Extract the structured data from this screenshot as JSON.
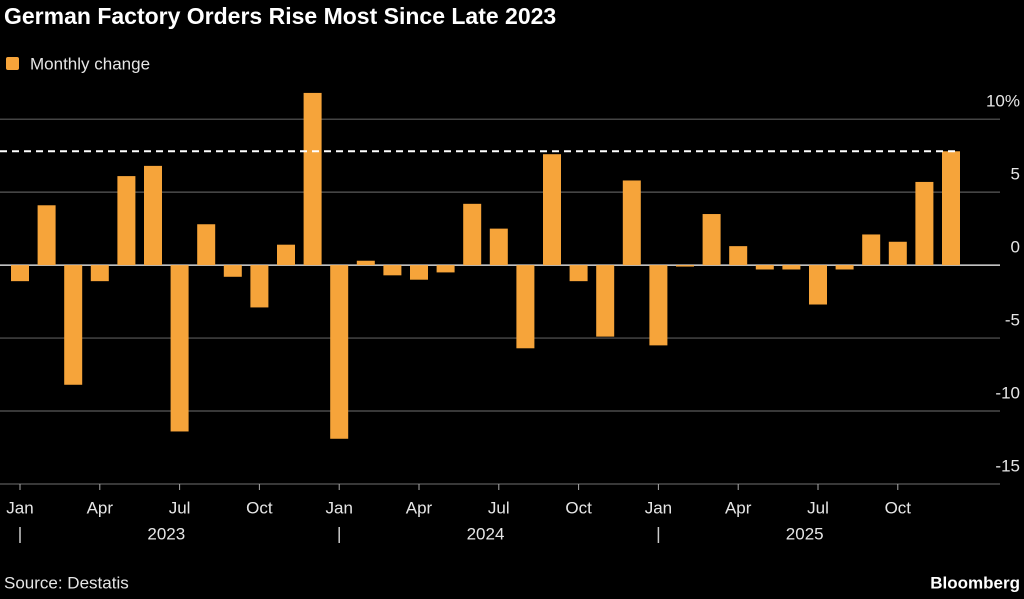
{
  "chart_data": {
    "type": "bar",
    "title": "German Factory Orders Rise Most Since Late 2023",
    "source": "Source: Destatis",
    "brand": "Bloomberg",
    "categories": [
      "Jan",
      null,
      null,
      "Apr",
      null,
      null,
      "Jul",
      null,
      null,
      "Oct",
      null,
      null,
      "Jan",
      null,
      null,
      "Apr",
      null,
      null,
      "Jul",
      null,
      null,
      "Oct",
      null,
      null,
      "Jan",
      null,
      null,
      "Apr",
      null,
      null,
      "Jul",
      null,
      null,
      "Oct",
      null,
      null
    ],
    "x_groups": [
      "2023",
      "2024",
      "2025"
    ],
    "series": [
      {
        "name": "Monthly change",
        "color": "#f6a43a",
        "values": [
          -1.1,
          4.1,
          -8.2,
          -1.1,
          6.1,
          6.8,
          -11.4,
          2.8,
          -0.8,
          -2.9,
          1.4,
          11.8,
          -11.9,
          0.3,
          -0.7,
          -1.0,
          -0.5,
          4.2,
          2.5,
          -5.7,
          7.6,
          -1.1,
          -4.9,
          5.8,
          -5.5,
          -0.1,
          3.5,
          1.3,
          -0.3,
          -0.3,
          -2.7,
          -0.3,
          2.1,
          1.6,
          5.7,
          7.8
        ]
      }
    ],
    "reference_line": 7.8,
    "ylim": [
      -15,
      12
    ],
    "yticks": [
      {
        "value": 10,
        "label": "10%"
      },
      5,
      0,
      -5,
      -10,
      -15
    ],
    "grid": true
  }
}
